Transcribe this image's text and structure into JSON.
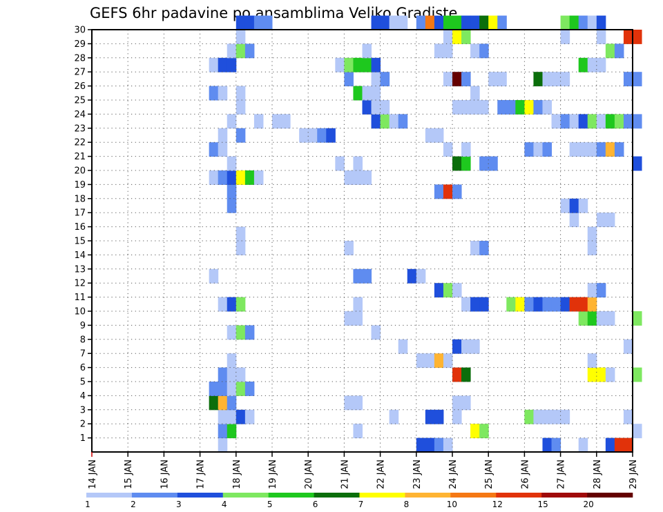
{
  "chart_data": {
    "type": "heatmap",
    "title": "GEFS 6hr padavine po ansamblima Veliko Gradiste",
    "y_ticks": [
      "1",
      "2",
      "3",
      "4",
      "5",
      "6",
      "7",
      "8",
      "9",
      "10",
      "11",
      "12",
      "13",
      "14",
      "15",
      "16",
      "17",
      "18",
      "19",
      "20",
      "21",
      "22",
      "23",
      "24",
      "25",
      "26",
      "27",
      "28",
      "29",
      "30"
    ],
    "x_ticks": [
      "14 JAN",
      "15 JAN",
      "16 JAN",
      "17 JAN",
      "18 JAN",
      "19 JAN",
      "20 JAN",
      "21 JAN",
      "22 JAN",
      "23 JAN",
      "24 JAN",
      "25 JAN",
      "26 JAN",
      "27 JAN",
      "28 JAN",
      "29 JAN"
    ],
    "x_range": [
      "14 JAN",
      "29 JAN"
    ],
    "y_range": [
      0,
      30
    ],
    "grid": true,
    "colorbar": {
      "levels": [
        "1",
        "2",
        "3",
        "4",
        "5",
        "6",
        "7",
        "8",
        "10",
        "12",
        "15",
        "20"
      ],
      "colors": [
        "#b4c8f8",
        "#5f8cf0",
        "#1f4fdc",
        "#7ee860",
        "#1ec81e",
        "#0b6e0b",
        "#ffff00",
        "#ffb432",
        "#f57814",
        "#e1320a",
        "#a00a0a",
        "#640000"
      ]
    },
    "cells": [
      [
        1,
        17.5,
        1
      ],
      [
        1,
        23.0,
        3
      ],
      [
        1,
        23.25,
        3
      ],
      [
        1,
        23.5,
        2
      ],
      [
        1,
        23.75,
        1
      ],
      [
        1,
        26.5,
        3
      ],
      [
        1,
        26.75,
        2
      ],
      [
        1,
        27.5,
        1
      ],
      [
        1,
        28.25,
        3
      ],
      [
        1,
        28.5,
        10
      ],
      [
        1,
        28.75,
        10
      ],
      [
        2,
        17.5,
        2
      ],
      [
        2,
        17.75,
        5
      ],
      [
        2,
        21.25,
        1
      ],
      [
        2,
        24.5,
        7
      ],
      [
        2,
        24.75,
        4
      ],
      [
        2,
        29.0,
        1
      ],
      [
        3,
        17.5,
        1
      ],
      [
        3,
        17.75,
        1
      ],
      [
        3,
        18.0,
        3
      ],
      [
        3,
        18.25,
        1
      ],
      [
        3,
        22.25,
        1
      ],
      [
        3,
        23.25,
        3
      ],
      [
        3,
        23.5,
        3
      ],
      [
        3,
        24.0,
        1
      ],
      [
        3,
        26.0,
        4
      ],
      [
        3,
        26.25,
        1
      ],
      [
        3,
        26.5,
        1
      ],
      [
        3,
        26.75,
        1
      ],
      [
        3,
        27.0,
        1
      ],
      [
        3,
        28.75,
        1
      ],
      [
        4,
        17.25,
        6
      ],
      [
        4,
        17.5,
        8
      ],
      [
        4,
        17.75,
        2
      ],
      [
        4,
        21.0,
        1
      ],
      [
        4,
        21.25,
        1
      ],
      [
        4,
        24.0,
        1
      ],
      [
        4,
        24.25,
        1
      ],
      [
        5,
        17.25,
        2
      ],
      [
        5,
        17.5,
        2
      ],
      [
        5,
        17.75,
        1
      ],
      [
        5,
        18.0,
        4
      ],
      [
        5,
        18.25,
        2
      ],
      [
        6,
        17.5,
        2
      ],
      [
        6,
        17.75,
        1
      ],
      [
        6,
        18.0,
        1
      ],
      [
        6,
        24.0,
        10
      ],
      [
        6,
        24.25,
        6
      ],
      [
        6,
        27.75,
        7
      ],
      [
        6,
        28.0,
        7
      ],
      [
        6,
        28.25,
        1
      ],
      [
        6,
        29.0,
        4
      ],
      [
        7,
        17.75,
        1
      ],
      [
        7,
        23.0,
        1
      ],
      [
        7,
        23.25,
        1
      ],
      [
        7,
        23.5,
        8
      ],
      [
        7,
        23.75,
        1
      ],
      [
        7,
        27.75,
        1
      ],
      [
        8,
        22.5,
        1
      ],
      [
        8,
        24.0,
        3
      ],
      [
        8,
        24.25,
        1
      ],
      [
        8,
        24.5,
        1
      ],
      [
        8,
        28.75,
        1
      ],
      [
        9,
        17.75,
        1
      ],
      [
        9,
        18.0,
        4
      ],
      [
        9,
        18.25,
        2
      ],
      [
        9,
        21.75,
        1
      ],
      [
        10,
        21.0,
        1
      ],
      [
        10,
        21.25,
        1
      ],
      [
        10,
        27.5,
        4
      ],
      [
        10,
        27.75,
        5
      ],
      [
        10,
        28.0,
        1
      ],
      [
        10,
        28.25,
        1
      ],
      [
        10,
        29.0,
        4
      ],
      [
        11,
        17.5,
        1
      ],
      [
        11,
        17.75,
        3
      ],
      [
        11,
        18.0,
        4
      ],
      [
        11,
        21.25,
        1
      ],
      [
        11,
        24.25,
        1
      ],
      [
        11,
        24.5,
        3
      ],
      [
        11,
        24.75,
        3
      ],
      [
        11,
        25.5,
        4
      ],
      [
        11,
        25.75,
        7
      ],
      [
        11,
        26.0,
        2
      ],
      [
        11,
        26.25,
        3
      ],
      [
        11,
        26.5,
        2
      ],
      [
        11,
        26.75,
        2
      ],
      [
        11,
        27.0,
        3
      ],
      [
        11,
        27.25,
        10
      ],
      [
        11,
        27.5,
        10
      ],
      [
        11,
        27.75,
        8
      ],
      [
        12,
        23.5,
        3
      ],
      [
        12,
        23.75,
        4
      ],
      [
        12,
        24.0,
        1
      ],
      [
        12,
        27.75,
        1
      ],
      [
        12,
        28.0,
        2
      ],
      [
        13,
        17.25,
        1
      ],
      [
        13,
        21.25,
        2
      ],
      [
        13,
        21.5,
        2
      ],
      [
        13,
        22.75,
        3
      ],
      [
        13,
        23.0,
        1
      ],
      [
        15,
        18.0,
        1
      ],
      [
        15,
        21.0,
        1
      ],
      [
        15,
        24.5,
        1
      ],
      [
        15,
        24.75,
        2
      ],
      [
        15,
        27.75,
        1
      ],
      [
        16,
        18.0,
        1
      ],
      [
        16,
        27.75,
        1
      ],
      [
        17,
        27.25,
        1
      ],
      [
        17,
        28.0,
        1
      ],
      [
        17,
        28.25,
        1
      ],
      [
        18,
        17.75,
        2
      ],
      [
        18,
        27.0,
        1
      ],
      [
        18,
        27.25,
        3
      ],
      [
        18,
        27.5,
        1
      ],
      [
        19,
        17.75,
        2
      ],
      [
        19,
        23.5,
        2
      ],
      [
        19,
        23.75,
        10
      ],
      [
        19,
        24.0,
        2
      ],
      [
        20,
        17.25,
        1
      ],
      [
        20,
        17.5,
        2
      ],
      [
        20,
        17.75,
        3
      ],
      [
        20,
        18.0,
        7
      ],
      [
        20,
        18.25,
        5
      ],
      [
        20,
        18.5,
        1
      ],
      [
        20,
        21.0,
        1
      ],
      [
        20,
        21.25,
        1
      ],
      [
        20,
        21.5,
        1
      ],
      [
        21,
        17.75,
        1
      ],
      [
        21,
        20.75,
        1
      ],
      [
        21,
        21.25,
        1
      ],
      [
        21,
        24.0,
        6
      ],
      [
        21,
        24.25,
        5
      ],
      [
        21,
        24.75,
        2
      ],
      [
        21,
        25.0,
        2
      ],
      [
        21,
        29.0,
        3
      ],
      [
        22,
        17.25,
        2
      ],
      [
        22,
        17.5,
        1
      ],
      [
        22,
        23.75,
        1
      ],
      [
        22,
        24.25,
        1
      ],
      [
        22,
        26.0,
        2
      ],
      [
        22,
        26.25,
        1
      ],
      [
        22,
        26.5,
        2
      ],
      [
        22,
        27.25,
        1
      ],
      [
        22,
        27.5,
        1
      ],
      [
        22,
        27.75,
        1
      ],
      [
        22,
        28.0,
        2
      ],
      [
        22,
        28.25,
        8
      ],
      [
        22,
        28.5,
        2
      ],
      [
        23,
        17.5,
        1
      ],
      [
        23,
        18.0,
        2
      ],
      [
        23,
        19.75,
        1
      ],
      [
        23,
        20.0,
        1
      ],
      [
        23,
        20.25,
        2
      ],
      [
        23,
        20.5,
        3
      ],
      [
        23,
        23.25,
        1
      ],
      [
        23,
        23.5,
        1
      ],
      [
        24,
        17.75,
        1
      ],
      [
        24,
        18.5,
        1
      ],
      [
        24,
        19.0,
        1
      ],
      [
        24,
        19.25,
        1
      ],
      [
        24,
        21.75,
        3
      ],
      [
        24,
        22.0,
        4
      ],
      [
        24,
        22.25,
        1
      ],
      [
        24,
        22.5,
        2
      ],
      [
        24,
        26.75,
        1
      ],
      [
        24,
        27.0,
        2
      ],
      [
        24,
        27.25,
        1
      ],
      [
        24,
        27.5,
        3
      ],
      [
        24,
        27.75,
        4
      ],
      [
        24,
        28.0,
        1
      ],
      [
        24,
        28.25,
        5
      ],
      [
        24,
        28.5,
        4
      ],
      [
        24,
        28.75,
        2
      ],
      [
        24,
        29.0,
        2
      ],
      [
        25,
        18.0,
        1
      ],
      [
        25,
        21.5,
        3
      ],
      [
        25,
        21.75,
        1
      ],
      [
        25,
        22.0,
        1
      ],
      [
        25,
        24.0,
        1
      ],
      [
        25,
        24.25,
        1
      ],
      [
        25,
        24.5,
        1
      ],
      [
        25,
        24.75,
        1
      ],
      [
        25,
        25.25,
        2
      ],
      [
        25,
        25.5,
        2
      ],
      [
        25,
        25.75,
        5
      ],
      [
        25,
        26.0,
        7
      ],
      [
        25,
        26.25,
        2
      ],
      [
        25,
        26.5,
        1
      ],
      [
        26,
        17.25,
        2
      ],
      [
        26,
        17.5,
        1
      ],
      [
        26,
        18.0,
        1
      ],
      [
        26,
        21.25,
        5
      ],
      [
        26,
        21.5,
        1
      ],
      [
        26,
        21.75,
        1
      ],
      [
        26,
        24.5,
        1
      ],
      [
        27,
        21.0,
        2
      ],
      [
        27,
        21.75,
        1
      ],
      [
        27,
        22.0,
        2
      ],
      [
        27,
        23.75,
        1
      ],
      [
        27,
        24.0,
        12
      ],
      [
        27,
        24.25,
        2
      ],
      [
        27,
        25.0,
        1
      ],
      [
        27,
        25.25,
        1
      ],
      [
        27,
        26.25,
        6
      ],
      [
        27,
        26.5,
        1
      ],
      [
        27,
        26.75,
        1
      ],
      [
        27,
        27.0,
        1
      ],
      [
        27,
        28.75,
        2
      ],
      [
        27,
        29.0,
        2
      ],
      [
        28,
        17.25,
        1
      ],
      [
        28,
        17.5,
        3
      ],
      [
        28,
        17.75,
        3
      ],
      [
        28,
        20.75,
        1
      ],
      [
        28,
        21.0,
        4
      ],
      [
        28,
        21.25,
        5
      ],
      [
        28,
        21.5,
        5
      ],
      [
        28,
        21.75,
        3
      ],
      [
        28,
        27.5,
        5
      ],
      [
        28,
        27.75,
        1
      ],
      [
        28,
        28.0,
        1
      ],
      [
        29,
        17.75,
        1
      ],
      [
        29,
        18.0,
        4
      ],
      [
        29,
        18.25,
        2
      ],
      [
        29,
        21.5,
        1
      ],
      [
        29,
        23.5,
        1
      ],
      [
        29,
        23.75,
        1
      ],
      [
        29,
        24.5,
        1
      ],
      [
        29,
        24.75,
        2
      ],
      [
        29,
        28.25,
        4
      ],
      [
        29,
        28.5,
        2
      ],
      [
        30,
        18.0,
        1
      ],
      [
        30,
        23.75,
        1
      ],
      [
        30,
        24.0,
        7
      ],
      [
        30,
        24.25,
        4
      ],
      [
        30,
        27.0,
        1
      ],
      [
        30,
        28.0,
        1
      ],
      [
        30,
        28.75,
        10
      ],
      [
        30,
        29.0,
        10
      ],
      [
        31,
        18.0,
        3
      ],
      [
        31,
        18.25,
        3
      ],
      [
        31,
        18.5,
        2
      ],
      [
        31,
        18.75,
        2
      ],
      [
        31,
        21.75,
        3
      ],
      [
        31,
        22.0,
        3
      ],
      [
        31,
        22.25,
        1
      ],
      [
        31,
        22.5,
        1
      ],
      [
        31,
        23.0,
        2
      ],
      [
        31,
        23.25,
        9
      ],
      [
        31,
        23.5,
        3
      ],
      [
        31,
        23.75,
        5
      ],
      [
        31,
        24.0,
        5
      ],
      [
        31,
        24.25,
        3
      ],
      [
        31,
        24.5,
        3
      ],
      [
        31,
        24.75,
        6
      ],
      [
        31,
        25.0,
        7
      ],
      [
        31,
        25.25,
        2
      ],
      [
        31,
        27.0,
        4
      ],
      [
        31,
        27.25,
        5
      ],
      [
        31,
        27.5,
        2
      ],
      [
        31,
        27.75,
        1
      ],
      [
        31,
        28.0,
        3
      ]
    ]
  }
}
